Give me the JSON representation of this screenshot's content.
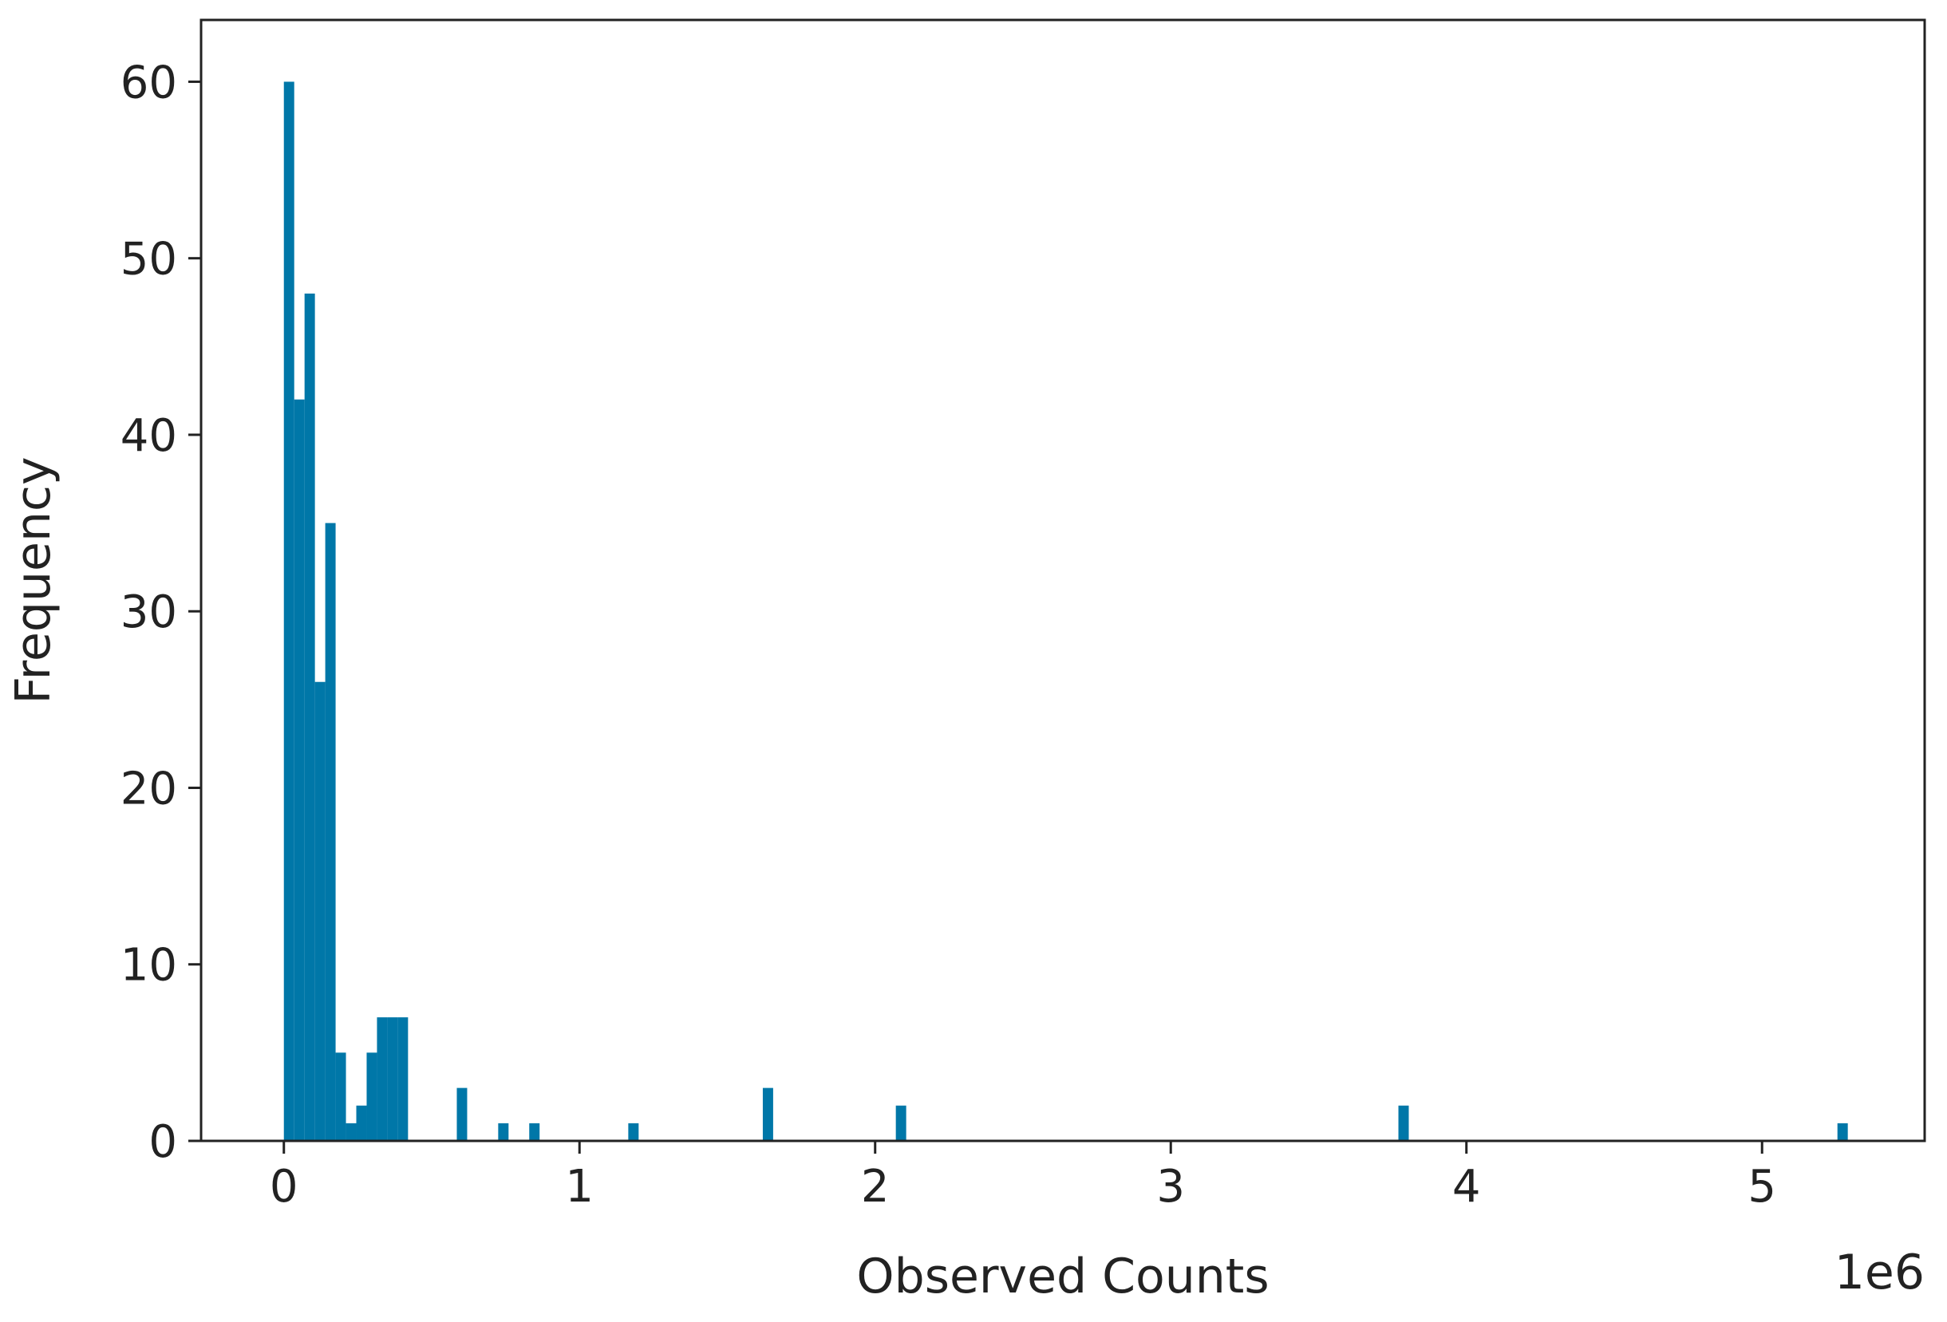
{
  "chart_data": {
    "type": "histogram",
    "xlabel": "Observed Counts",
    "ylabel": "Frequency",
    "x_offset_label": "1e6",
    "xlim": [
      -0.28,
      5.55
    ],
    "ylim": [
      0,
      63.5
    ],
    "x_ticks": [
      0,
      1,
      2,
      3,
      4,
      5
    ],
    "x_tick_labels": [
      "0",
      "1",
      "2",
      "3",
      "4",
      "5"
    ],
    "y_ticks": [
      0,
      10,
      20,
      30,
      40,
      50,
      60
    ],
    "y_tick_labels": [
      "0",
      "10",
      "20",
      "30",
      "40",
      "50",
      "60"
    ],
    "bar_color": "#0077a8",
    "grid": false,
    "legend": "none",
    "bins": [
      {
        "x0": 0.0,
        "x1": 0.035,
        "count": 60
      },
      {
        "x0": 0.035,
        "x1": 0.07,
        "count": 42
      },
      {
        "x0": 0.07,
        "x1": 0.105,
        "count": 48
      },
      {
        "x0": 0.105,
        "x1": 0.14,
        "count": 26
      },
      {
        "x0": 0.14,
        "x1": 0.175,
        "count": 35
      },
      {
        "x0": 0.175,
        "x1": 0.21,
        "count": 5
      },
      {
        "x0": 0.21,
        "x1": 0.245,
        "count": 1
      },
      {
        "x0": 0.245,
        "x1": 0.28,
        "count": 2
      },
      {
        "x0": 0.28,
        "x1": 0.315,
        "count": 5
      },
      {
        "x0": 0.315,
        "x1": 0.35,
        "count": 7
      },
      {
        "x0": 0.35,
        "x1": 0.385,
        "count": 7
      },
      {
        "x0": 0.385,
        "x1": 0.42,
        "count": 7
      },
      {
        "x0": 0.585,
        "x1": 0.62,
        "count": 3
      },
      {
        "x0": 0.725,
        "x1": 0.76,
        "count": 1
      },
      {
        "x0": 0.83,
        "x1": 0.865,
        "count": 1
      },
      {
        "x0": 1.165,
        "x1": 1.2,
        "count": 1
      },
      {
        "x0": 1.62,
        "x1": 1.655,
        "count": 3
      },
      {
        "x0": 2.07,
        "x1": 2.105,
        "count": 2
      },
      {
        "x0": 3.77,
        "x1": 3.805,
        "count": 2
      },
      {
        "x0": 5.255,
        "x1": 5.29,
        "count": 1
      }
    ]
  }
}
